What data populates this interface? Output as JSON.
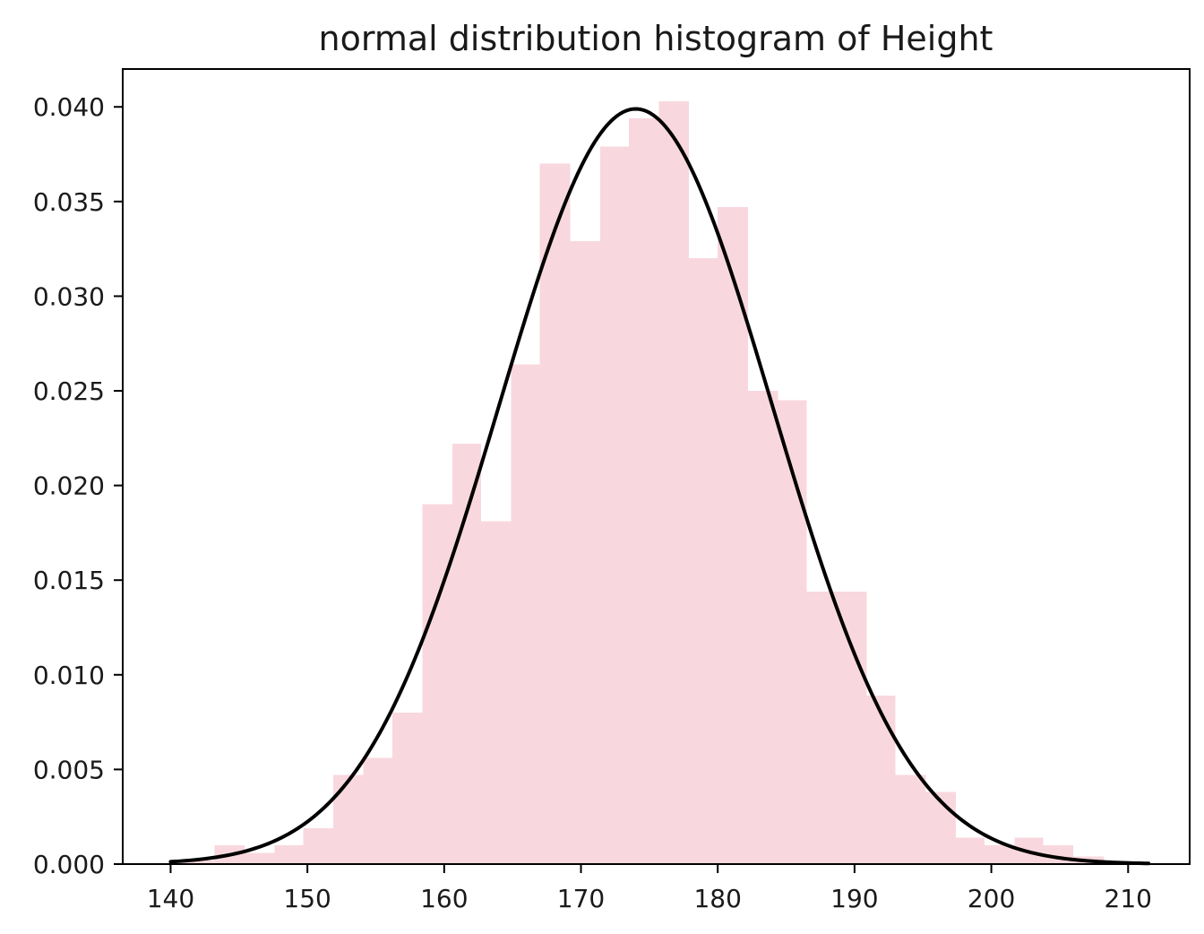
{
  "chart_data": {
    "type": "bar",
    "subtype": "histogram-with-density-curve",
    "title": "normal distribution histogram of Height",
    "xlabel": "",
    "ylabel": "",
    "xlim": [
      136.5,
      214.5
    ],
    "ylim": [
      0,
      0.042
    ],
    "x_ticks": [
      140,
      150,
      160,
      170,
      180,
      190,
      200,
      210
    ],
    "x_tick_labels": [
      "140",
      "150",
      "160",
      "170",
      "180",
      "190",
      "200",
      "210"
    ],
    "y_ticks": [
      0,
      0.005,
      0.01,
      0.015,
      0.02,
      0.025,
      0.03,
      0.035,
      0.04
    ],
    "y_tick_labels": [
      "0.000",
      "0.005",
      "0.010",
      "0.015",
      "0.020",
      "0.025",
      "0.030",
      "0.035",
      "0.040"
    ],
    "grid": false,
    "bins": [
      {
        "x0": 140.0,
        "x1": 143.2,
        "density": 0.0002
      },
      {
        "x0": 143.2,
        "x1": 145.4,
        "density": 0.001
      },
      {
        "x0": 145.4,
        "x1": 147.6,
        "density": 0.0006
      },
      {
        "x0": 147.6,
        "x1": 149.7,
        "density": 0.001
      },
      {
        "x0": 149.7,
        "x1": 151.9,
        "density": 0.0019
      },
      {
        "x0": 151.9,
        "x1": 154.1,
        "density": 0.0047
      },
      {
        "x0": 154.1,
        "x1": 156.2,
        "density": 0.0056
      },
      {
        "x0": 156.2,
        "x1": 158.4,
        "density": 0.008
      },
      {
        "x0": 158.4,
        "x1": 160.6,
        "density": 0.019
      },
      {
        "x0": 160.6,
        "x1": 162.7,
        "density": 0.0222
      },
      {
        "x0": 162.7,
        "x1": 164.9,
        "density": 0.0181
      },
      {
        "x0": 164.9,
        "x1": 167.0,
        "density": 0.0264
      },
      {
        "x0": 167.0,
        "x1": 169.2,
        "density": 0.037
      },
      {
        "x0": 169.2,
        "x1": 171.4,
        "density": 0.0329
      },
      {
        "x0": 171.4,
        "x1": 173.5,
        "density": 0.0379
      },
      {
        "x0": 173.5,
        "x1": 175.7,
        "density": 0.0394
      },
      {
        "x0": 175.7,
        "x1": 177.9,
        "density": 0.0403
      },
      {
        "x0": 177.9,
        "x1": 180.0,
        "density": 0.032
      },
      {
        "x0": 180.0,
        "x1": 182.2,
        "density": 0.0347
      },
      {
        "x0": 182.2,
        "x1": 184.4,
        "density": 0.025
      },
      {
        "x0": 184.4,
        "x1": 186.5,
        "density": 0.0245
      },
      {
        "x0": 186.5,
        "x1": 188.7,
        "density": 0.0144
      },
      {
        "x0": 188.7,
        "x1": 190.9,
        "density": 0.0144
      },
      {
        "x0": 190.9,
        "x1": 193.0,
        "density": 0.0089
      },
      {
        "x0": 193.0,
        "x1": 195.2,
        "density": 0.0047
      },
      {
        "x0": 195.2,
        "x1": 197.4,
        "density": 0.0038
      },
      {
        "x0": 197.4,
        "x1": 199.5,
        "density": 0.0014
      },
      {
        "x0": 199.5,
        "x1": 201.7,
        "density": 0.001
      },
      {
        "x0": 201.7,
        "x1": 203.8,
        "density": 0.0014
      },
      {
        "x0": 203.8,
        "x1": 206.0,
        "density": 0.001
      },
      {
        "x0": 206.0,
        "x1": 208.2,
        "density": 0.0004
      },
      {
        "x0": 208.2,
        "x1": 210.3,
        "density": 0.0001
      }
    ],
    "curve": {
      "type": "normal-pdf",
      "mean": 174,
      "std": 10,
      "x_range": [
        140,
        211.5
      ]
    },
    "colors": {
      "bars": "#f8d8de",
      "curve": "#000000",
      "axes": "#000000",
      "text": "#1a1a1a"
    }
  }
}
